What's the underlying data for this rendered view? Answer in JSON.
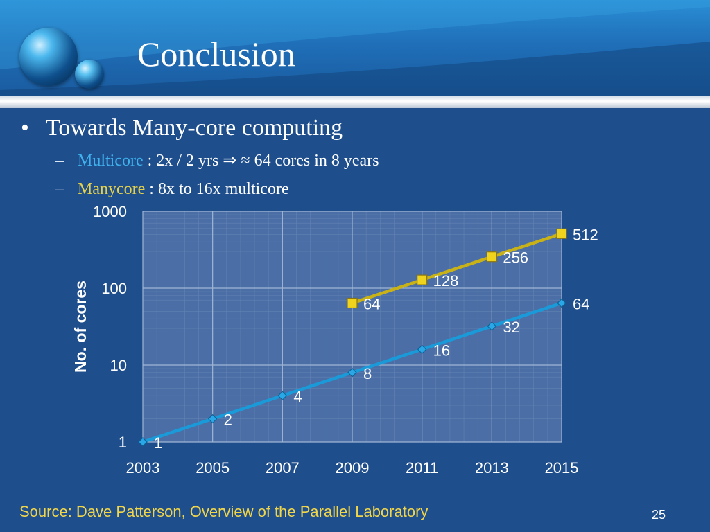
{
  "slide": {
    "title": "Conclusion",
    "bullet": "Towards Many-core computing",
    "sub_bullets": [
      {
        "keyword": "Multicore",
        "text": " : 2x / 2 yrs ⇒ ≈ 64 cores in 8 years"
      },
      {
        "keyword": "Manycore",
        "text": " : 8x to 16x multicore"
      }
    ],
    "source": "Source: Dave Patterson, Overview of the Parallel Laboratory",
    "page_number": "25",
    "bullet_glyph": "•",
    "dash_glyph": "–"
  },
  "colors": {
    "background": "#1f4e8c",
    "plot_area": "#4a6ea5",
    "multicore_line": "#1a9ad8",
    "manycore_line": "#c8b217",
    "manycore_marker": "#f0d31c",
    "multicore_marker": "#2aa7e6",
    "source_text": "#f1d64a"
  },
  "chart_data": {
    "type": "line",
    "yscale": "log",
    "ylabel": "No. of cores",
    "xlabel": "",
    "x_ticks": [
      2003,
      2005,
      2007,
      2009,
      2011,
      2013,
      2015
    ],
    "y_ticks": [
      1,
      10,
      100,
      1000
    ],
    "ylim": [
      1,
      1000
    ],
    "xlim": [
      2003,
      2015
    ],
    "grid": true,
    "series": [
      {
        "name": "Multicore",
        "marker": "diamond",
        "x": [
          2003,
          2005,
          2007,
          2009,
          2011,
          2013,
          2015
        ],
        "y": [
          1,
          2,
          4,
          8,
          16,
          32,
          64
        ],
        "labels": [
          "1",
          "2",
          "4",
          "8",
          "16",
          "32",
          "64"
        ]
      },
      {
        "name": "Manycore",
        "marker": "square",
        "x": [
          2009,
          2011,
          2013,
          2015
        ],
        "y": [
          64,
          128,
          256,
          512
        ],
        "labels": [
          "64",
          "128",
          "256",
          "512"
        ]
      }
    ]
  }
}
